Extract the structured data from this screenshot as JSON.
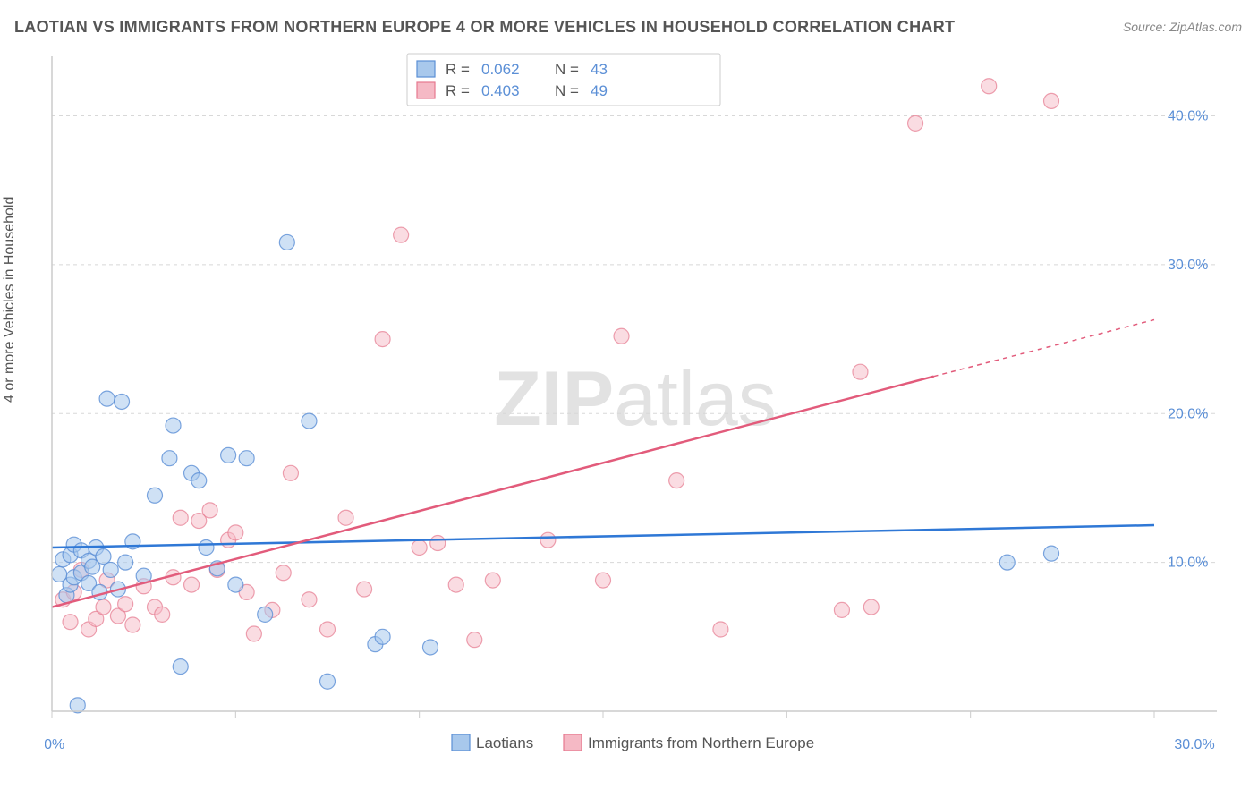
{
  "title": "LAOTIAN VS IMMIGRANTS FROM NORTHERN EUROPE 4 OR MORE VEHICLES IN HOUSEHOLD CORRELATION CHART",
  "source": "Source: ZipAtlas.com",
  "y_axis_label": "4 or more Vehicles in Household",
  "watermark": {
    "zip": "ZIP",
    "rest": "atlas"
  },
  "chart": {
    "type": "scatter",
    "xlim": [
      0,
      30
    ],
    "ylim": [
      0,
      44
    ],
    "x_ticks": [
      0,
      5,
      10,
      15,
      20,
      25,
      30
    ],
    "x_tick_labels": [
      "0.0%",
      "",
      "",
      "",
      "",
      "",
      "30.0%"
    ],
    "y_ticks": [
      10,
      20,
      30,
      40
    ],
    "y_tick_labels": [
      "10.0%",
      "20.0%",
      "30.0%",
      "40.0%"
    ],
    "grid_color": "#d8d8d8",
    "background": "#ffffff",
    "marker_radius": 8.5,
    "series": [
      {
        "name": "Laotians",
        "color_fill": "#a8c8ec",
        "color_stroke": "#5b8fd6",
        "R": "0.062",
        "N": "43",
        "trend": {
          "x1": 0,
          "y1": 11.0,
          "x2": 30,
          "y2": 12.5
        },
        "points": [
          [
            0.2,
            9.2
          ],
          [
            0.3,
            10.2
          ],
          [
            0.4,
            7.8
          ],
          [
            0.5,
            8.5
          ],
          [
            0.5,
            10.5
          ],
          [
            0.6,
            9.0
          ],
          [
            0.6,
            11.2
          ],
          [
            0.7,
            0.4
          ],
          [
            0.8,
            10.8
          ],
          [
            0.8,
            9.3
          ],
          [
            1.0,
            8.6
          ],
          [
            1.0,
            10.1
          ],
          [
            1.1,
            9.7
          ],
          [
            1.2,
            11.0
          ],
          [
            1.3,
            8.0
          ],
          [
            1.4,
            10.4
          ],
          [
            1.5,
            21.0
          ],
          [
            1.6,
            9.5
          ],
          [
            1.8,
            8.2
          ],
          [
            1.9,
            20.8
          ],
          [
            2.0,
            10.0
          ],
          [
            2.2,
            11.4
          ],
          [
            2.5,
            9.1
          ],
          [
            2.8,
            14.5
          ],
          [
            3.2,
            17.0
          ],
          [
            3.3,
            19.2
          ],
          [
            3.5,
            3.0
          ],
          [
            3.8,
            16.0
          ],
          [
            4.0,
            15.5
          ],
          [
            4.2,
            11.0
          ],
          [
            4.5,
            9.6
          ],
          [
            4.8,
            17.2
          ],
          [
            5.0,
            8.5
          ],
          [
            5.3,
            17.0
          ],
          [
            5.8,
            6.5
          ],
          [
            6.4,
            31.5
          ],
          [
            7.0,
            19.5
          ],
          [
            7.5,
            2.0
          ],
          [
            8.8,
            4.5
          ],
          [
            9.0,
            5.0
          ],
          [
            10.3,
            4.3
          ],
          [
            26.0,
            10.0
          ],
          [
            27.2,
            10.6
          ]
        ]
      },
      {
        "name": "Immigrants from Northern Europe",
        "color_fill": "#f5b9c5",
        "color_stroke": "#e5798f",
        "R": "0.403",
        "N": "49",
        "trend": {
          "x1": 0,
          "y1": 7.0,
          "x2": 24,
          "y2": 22.5
        },
        "trend_dash": {
          "x1": 24,
          "y1": 22.5,
          "x2": 30,
          "y2": 26.3
        },
        "points": [
          [
            0.3,
            7.5
          ],
          [
            0.5,
            6.0
          ],
          [
            0.6,
            8.0
          ],
          [
            0.8,
            9.5
          ],
          [
            1.0,
            5.5
          ],
          [
            1.2,
            6.2
          ],
          [
            1.4,
            7.0
          ],
          [
            1.5,
            8.8
          ],
          [
            1.8,
            6.4
          ],
          [
            2.0,
            7.2
          ],
          [
            2.2,
            5.8
          ],
          [
            2.5,
            8.4
          ],
          [
            2.8,
            7.0
          ],
          [
            3.0,
            6.5
          ],
          [
            3.3,
            9.0
          ],
          [
            3.5,
            13.0
          ],
          [
            3.8,
            8.5
          ],
          [
            4.0,
            12.8
          ],
          [
            4.3,
            13.5
          ],
          [
            4.5,
            9.5
          ],
          [
            4.8,
            11.5
          ],
          [
            5.0,
            12.0
          ],
          [
            5.3,
            8.0
          ],
          [
            5.5,
            5.2
          ],
          [
            6.0,
            6.8
          ],
          [
            6.3,
            9.3
          ],
          [
            6.5,
            16.0
          ],
          [
            7.0,
            7.5
          ],
          [
            7.5,
            5.5
          ],
          [
            8.0,
            13.0
          ],
          [
            8.5,
            8.2
          ],
          [
            9.0,
            25.0
          ],
          [
            9.5,
            32.0
          ],
          [
            10.0,
            11.0
          ],
          [
            10.5,
            11.3
          ],
          [
            11.0,
            8.5
          ],
          [
            11.5,
            4.8
          ],
          [
            12.0,
            8.8
          ],
          [
            13.5,
            11.5
          ],
          [
            15.0,
            8.8
          ],
          [
            15.5,
            25.2
          ],
          [
            17.0,
            15.5
          ],
          [
            18.2,
            5.5
          ],
          [
            21.5,
            6.8
          ],
          [
            22.0,
            22.8
          ],
          [
            22.3,
            7.0
          ],
          [
            23.5,
            39.5
          ],
          [
            25.5,
            42.0
          ],
          [
            27.2,
            41.0
          ]
        ]
      }
    ]
  },
  "stats_legend": {
    "rows": [
      {
        "R_label": "R =",
        "R": "0.062",
        "N_label": "N =",
        "N": "43"
      },
      {
        "R_label": "R =",
        "R": "0.403",
        "N_label": "N =",
        "N": "49"
      }
    ]
  },
  "bottom_legend": {
    "items": [
      {
        "label": "Laotians"
      },
      {
        "label": "Immigrants from Northern Europe"
      }
    ]
  }
}
